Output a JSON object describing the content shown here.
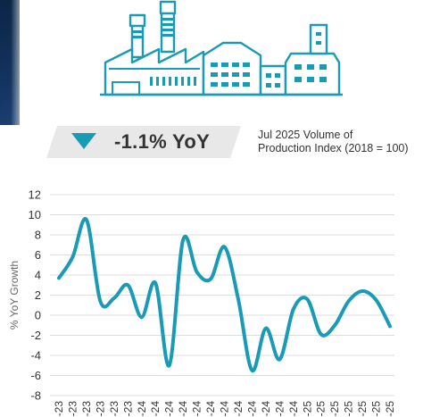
{
  "header": {
    "yoy_value": "-1.1% YoY",
    "description_line1": "Jul 2025 Volume of",
    "description_line2": "Production Index (2018 = 100)"
  },
  "colors": {
    "accent": "#1a9bb5",
    "banner_bg": "#e8e8e8",
    "grid": "#dddddd",
    "text": "#333333"
  },
  "icons": {
    "down_arrow": "down-triangle-icon",
    "illustration": "factory-icon"
  },
  "chart_data": {
    "type": "line",
    "title": "",
    "xlabel": "",
    "ylabel": "% YoY Growth",
    "ylim": [
      -8,
      12
    ],
    "yticks": [
      -8,
      -6,
      -4,
      -2,
      0,
      2,
      4,
      6,
      8,
      10,
      12
    ],
    "grid": true,
    "legend": "none",
    "categories": [
      "-23",
      "-23",
      "-23",
      "-23",
      "-23",
      "-23",
      "-24",
      "-24",
      "-24",
      "-24",
      "-24",
      "-24",
      "-24",
      "-24",
      "-24",
      "-24",
      "-24",
      "-24",
      "-25",
      "-25",
      "-25",
      "-25",
      "-25",
      "-25",
      "-25"
    ],
    "series": [
      {
        "values": [
          3.7,
          5.8,
          9.5,
          1.4,
          1.7,
          3.0,
          -0.2,
          3.2,
          -5.0,
          7.5,
          4.3,
          3.6,
          6.8,
          1.6,
          -5.5,
          -1.3,
          -4.4,
          0.6,
          1.6,
          -1.9,
          -1.0,
          1.4,
          2.4,
          1.5,
          -1.1
        ]
      }
    ]
  }
}
